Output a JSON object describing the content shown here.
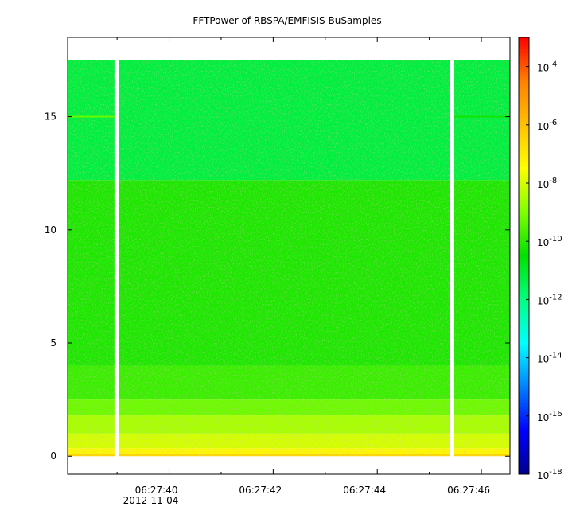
{
  "chart_data": {
    "type": "heatmap",
    "title": "FFTPower of RBSPA/EMFISIS  BuSamples",
    "xlabel": "",
    "ylabel": "",
    "x_axis": {
      "kind": "time",
      "date_label": "2012-11-04",
      "range": [
        "06:27:38.05",
        "06:27:46.55"
      ],
      "major_ticks": [
        {
          "value": "06:27:40",
          "label": "06:27:40"
        },
        {
          "value": "06:27:42",
          "label": "06:27:42"
        },
        {
          "value": "06:27:44",
          "label": "06:27:44"
        },
        {
          "value": "06:27:46",
          "label": "06:27:46"
        }
      ],
      "minor_ticks": [
        "06:27:39",
        "06:27:41",
        "06:27:43",
        "06:27:45"
      ]
    },
    "y_axis": {
      "range": [
        -0.8,
        18.5
      ],
      "ticks": [
        {
          "value": 0,
          "label": "0"
        },
        {
          "value": 5,
          "label": "5"
        },
        {
          "value": 10,
          "label": "10"
        },
        {
          "value": 15,
          "label": "15"
        }
      ]
    },
    "colorbar": {
      "scale": "log",
      "range": [
        1e-18,
        0.001
      ],
      "colors": [
        "#00008f",
        "#0000ff",
        "#0080ff",
        "#00ffff",
        "#00ff80",
        "#00e000",
        "#80ff00",
        "#ffff00",
        "#ffc000",
        "#ff8000",
        "#ff0000"
      ],
      "ticks": [
        {
          "value": 0.0001,
          "base": "10",
          "exp": "-4"
        },
        {
          "value": 1e-06,
          "base": "10",
          "exp": "-6"
        },
        {
          "value": 1e-08,
          "base": "10",
          "exp": "-8"
        },
        {
          "value": 1e-10,
          "base": "10",
          "exp": "-10"
        },
        {
          "value": 1e-12,
          "base": "10",
          "exp": "-12"
        },
        {
          "value": 1e-14,
          "base": "10",
          "exp": "-14"
        },
        {
          "value": 1e-16,
          "base": "10",
          "exp": "-16"
        },
        {
          "value": 1e-18,
          "base": "10",
          "exp": "-18"
        }
      ]
    },
    "data_extent": {
      "t_start": "06:27:38.05",
      "t_end": "06:27:46.55",
      "freq_min": 0,
      "freq_max": 17.5
    },
    "data_gaps": [
      {
        "start": "06:27:38.95",
        "end": "06:27:39.03"
      },
      {
        "start": "06:27:45.4",
        "end": "06:27:45.48"
      }
    ],
    "frequency_bands": [
      {
        "from": 0,
        "to": 0.08,
        "power": 3e-07
      },
      {
        "from": 0.08,
        "to": 0.35,
        "power": 5e-08
      },
      {
        "from": 0.35,
        "to": 1.0,
        "power": 1e-08
      },
      {
        "from": 1.0,
        "to": 1.8,
        "power": 3e-09
      },
      {
        "from": 1.8,
        "to": 2.5,
        "power": 6e-10
      },
      {
        "from": 2.5,
        "to": 4.0,
        "power": 1.5e-10
      },
      {
        "from": 4.0,
        "to": 12.2,
        "power": 7e-11
      },
      {
        "from": 12.2,
        "to": 17.5,
        "power": 6e-12
      }
    ],
    "features": [
      {
        "t_start": "06:27:38.05",
        "t_end": "06:27:38.95",
        "freq": 15.0,
        "power": 5e-10
      },
      {
        "t_start": "06:27:45.48",
        "t_end": "06:27:46.55",
        "freq": 15.0,
        "power": 5e-11
      }
    ]
  }
}
